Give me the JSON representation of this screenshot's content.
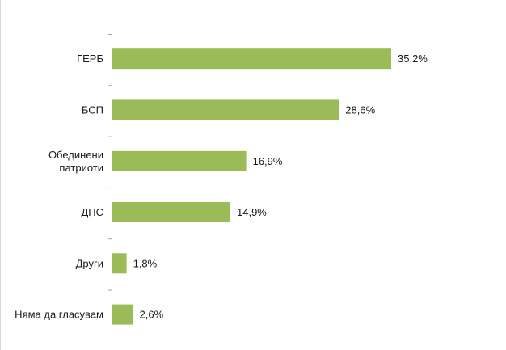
{
  "chart_data": {
    "type": "bar",
    "orientation": "horizontal",
    "categories": [
      [
        "ГЕРБ"
      ],
      [
        "БСП"
      ],
      [
        "Обединени",
        "патриоти"
      ],
      [
        "ДПС"
      ],
      [
        "Други"
      ],
      [
        "Няма да гласувам"
      ]
    ],
    "values": [
      35.2,
      28.6,
      16.9,
      14.9,
      1.8,
      2.6
    ],
    "value_labels": [
      "35,2%",
      "28,6%",
      "16,9%",
      "14,9%",
      "1,8%",
      "2,6%"
    ],
    "xlim": [
      0,
      40
    ],
    "grid": false,
    "legend": "none",
    "bar_color": "#9bbb59",
    "axis_color": "#a6a6a6"
  }
}
